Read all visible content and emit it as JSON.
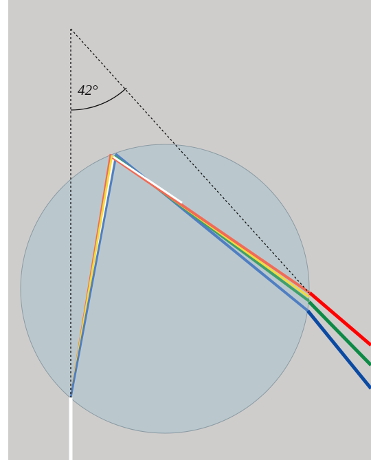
{
  "diagram": {
    "angle_label": "42°",
    "colors": {
      "background": "#cfcdcc",
      "droplet_fill": "#bac8ce",
      "droplet_stroke": "#8a9aa2",
      "white_light": "#ffffff",
      "red": "#ff0000",
      "red_inside": "#f26a55",
      "yellow": "#f2dc3c",
      "green": "#0d8a45",
      "green_inside": "#3fa06a",
      "blue": "#0b4aa3",
      "blue_inside": "#4f7ec2",
      "guide_line": "#111111"
    }
  }
}
